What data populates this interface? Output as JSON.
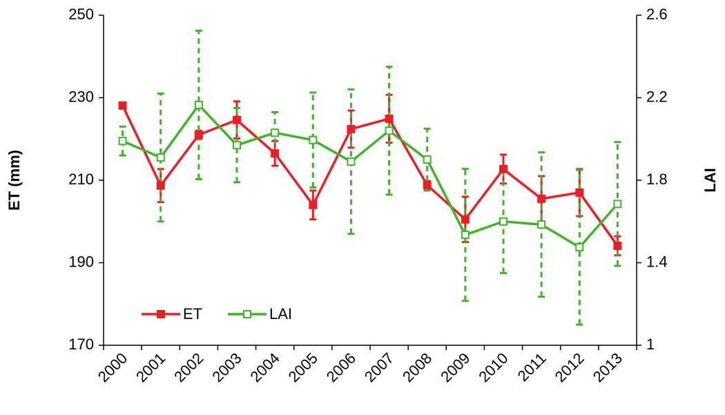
{
  "chart_data": {
    "type": "line",
    "categories": [
      "2000",
      "2001",
      "2002",
      "2003",
      "2004",
      "2005",
      "2006",
      "2007",
      "2008",
      "2009",
      "2010",
      "2011",
      "2012",
      "2013"
    ],
    "ylabel": "ET (mm)",
    "y2label": "LAI",
    "ylim": [
      170,
      250
    ],
    "yticks": [
      170,
      190,
      210,
      230,
      250
    ],
    "y2lim": [
      1,
      2.6
    ],
    "y2ticks": [
      1,
      1.4,
      1.8,
      2.2,
      2.6
    ],
    "legend": "lower left",
    "series": [
      {
        "name": "ET",
        "color": "#ee1c24",
        "marker": "filled-square",
        "error_style": "solid",
        "values": [
          228.1,
          208.7,
          221,
          224.6,
          216.5,
          204,
          222.4,
          224.9,
          208.8,
          200.5,
          212.7,
          205.5,
          207,
          194.1
        ],
        "errors": [
          0.7,
          4,
          1,
          4.5,
          3,
          3.5,
          4.5,
          5.8,
          1,
          5.5,
          3.5,
          5.5,
          5.7,
          2.3
        ]
      },
      {
        "name": "LAI",
        "color": "#3cb526",
        "marker": "hollow-square",
        "error_style": "dashed",
        "axis": "y2",
        "values": [
          1.99,
          1.91,
          2.165,
          1.97,
          2.03,
          1.995,
          1.89,
          2.04,
          1.9,
          1.535,
          1.6,
          1.585,
          1.475,
          1.685
        ],
        "errors": [
          0.07,
          0.31,
          0.36,
          0.18,
          0.1,
          0.23,
          0.35,
          0.31,
          0.15,
          0.32,
          0.25,
          0.35,
          0.375,
          0.3
        ]
      }
    ]
  }
}
